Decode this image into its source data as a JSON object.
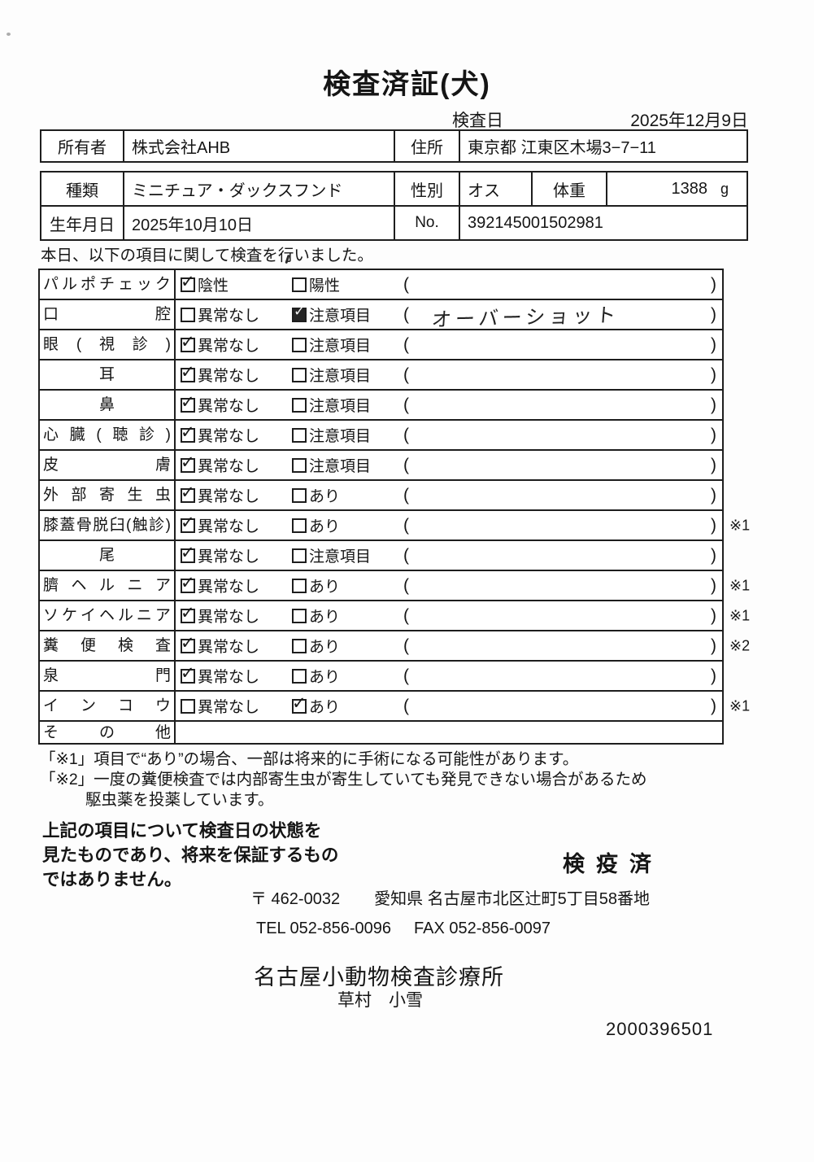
{
  "document": {
    "title": "検査済証(犬)",
    "inspection_date_label": "検査日",
    "inspection_date": "2025年12月9日",
    "intro": "本日、以下の項目に関して検査を行いました。"
  },
  "owner_table": {
    "owner_label": "所有者",
    "owner": "株式会社AHB",
    "address_label": "住所",
    "address": "東京都 江東区木場3−7−11"
  },
  "animal_table": {
    "breed_label": "種類",
    "breed": "ミニチュア・ダックスフンド",
    "sex_label": "性別",
    "sex": "オス",
    "weight_label": "体重",
    "weight_value": "1388",
    "weight_unit": "g",
    "birth_label": "生年月日",
    "birth_date": "2025年10月10日",
    "no_label": "No.",
    "no_value": "392145001502981"
  },
  "inspection": {
    "paren_open": "(",
    "paren_close": ")",
    "rows": [
      {
        "label": "パルポチェック",
        "options": [
          {
            "label": "陰性",
            "checked": true
          },
          {
            "label": "陽性",
            "checked": false
          }
        ],
        "paren": "",
        "note": ""
      },
      {
        "label": "口腔",
        "options": [
          {
            "label": "異常なし",
            "checked": false
          },
          {
            "label": "注意項目",
            "checked": true,
            "dark": true
          }
        ],
        "paren": "オーバーショット",
        "note": ""
      },
      {
        "label": "眼(視診)",
        "options": [
          {
            "label": "異常なし",
            "checked": true
          },
          {
            "label": "注意項目",
            "checked": false
          }
        ],
        "paren": "",
        "note": ""
      },
      {
        "label": "耳",
        "options": [
          {
            "label": "異常なし",
            "checked": true
          },
          {
            "label": "注意項目",
            "checked": false
          }
        ],
        "paren": "",
        "note": ""
      },
      {
        "label": "鼻",
        "options": [
          {
            "label": "異常なし",
            "checked": true
          },
          {
            "label": "注意項目",
            "checked": false
          }
        ],
        "paren": "",
        "note": ""
      },
      {
        "label": "心臓(聴診)",
        "options": [
          {
            "label": "異常なし",
            "checked": true
          },
          {
            "label": "注意項目",
            "checked": false
          }
        ],
        "paren": "",
        "note": ""
      },
      {
        "label": "皮膚",
        "options": [
          {
            "label": "異常なし",
            "checked": true
          },
          {
            "label": "注意項目",
            "checked": false
          }
        ],
        "paren": "",
        "note": ""
      },
      {
        "label": "外部寄生虫",
        "options": [
          {
            "label": "異常なし",
            "checked": true
          },
          {
            "label": "あり",
            "checked": false
          }
        ],
        "paren": "",
        "note": ""
      },
      {
        "label": "膝蓋骨脱臼(触診)",
        "options": [
          {
            "label": "異常なし",
            "checked": true
          },
          {
            "label": "あり",
            "checked": false
          }
        ],
        "paren": "",
        "note": "※1"
      },
      {
        "label": "尾",
        "options": [
          {
            "label": "異常なし",
            "checked": true
          },
          {
            "label": "注意項目",
            "checked": false
          }
        ],
        "paren": "",
        "note": ""
      },
      {
        "label": "臍ヘルニア",
        "options": [
          {
            "label": "異常なし",
            "checked": true
          },
          {
            "label": "あり",
            "checked": false
          }
        ],
        "paren": "",
        "note": "※1"
      },
      {
        "label": "ソケイヘルニア",
        "options": [
          {
            "label": "異常なし",
            "checked": true
          },
          {
            "label": "あり",
            "checked": false
          }
        ],
        "paren": "",
        "note": "※1"
      },
      {
        "label": "糞便検査",
        "options": [
          {
            "label": "異常なし",
            "checked": true
          },
          {
            "label": "あり",
            "checked": false
          }
        ],
        "paren": "",
        "note": "※2"
      },
      {
        "label": "泉門",
        "options": [
          {
            "label": "異常なし",
            "checked": true
          },
          {
            "label": "あり",
            "checked": false
          }
        ],
        "paren": "",
        "note": ""
      },
      {
        "label": "インコウ",
        "options": [
          {
            "label": "異常なし",
            "checked": false
          },
          {
            "label": "あり",
            "checked": true
          }
        ],
        "paren": "",
        "note": "※1"
      },
      {
        "label": "その他",
        "options": [],
        "note": ""
      }
    ]
  },
  "footnotes": [
    "「※1」項目で“あり”の場合、一部は将来的に手術になる可能性があります。",
    "「※2」一度の糞便検査では内部寄生虫が寄生していても発見できない場合があるため",
    "駆虫薬を投薬しています。"
  ],
  "bottom": {
    "statement": [
      "上記の項目について検査日の状態を",
      "見たものであり、将来を保証するもの",
      "ではありません。"
    ],
    "quarantine_label": "検疫済",
    "postal_code": "〒 462-0032",
    "clinic_address": "愛知県 名古屋市北区辻町5丁目58番地",
    "tel": "TEL 052-856-0096",
    "fax": "FAX 052-856-0097",
    "clinic_name": "名古屋小動物検査診療所",
    "examiner_name": "草村　小雪",
    "serial_number": "2000396501"
  },
  "colors": {
    "border": "#1e1e1e",
    "text": "#151515",
    "background": "#fdfdfd"
  }
}
